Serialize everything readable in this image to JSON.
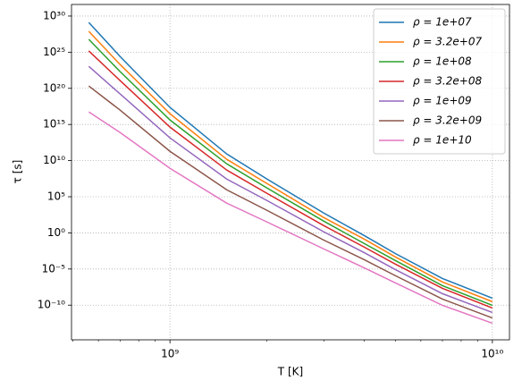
{
  "chart_data": {
    "type": "line",
    "xlabel": "T [K]",
    "ylabel": "τ [s]",
    "xscale": "log",
    "yscale": "log",
    "grid": true,
    "legend_loc": "upper-right",
    "xlim": [
      495000000.0,
      11300000000.0
    ],
    "ylim": [
      1.6e-15,
      4e+31
    ],
    "xticks": [
      {
        "value": 1000000000.0,
        "label": "10⁹"
      },
      {
        "value": 10000000000.0,
        "label": "10¹⁰"
      }
    ],
    "xminorticks": [
      500000000.0,
      600000000.0,
      700000000.0,
      800000000.0,
      900000000.0,
      2000000000.0,
      3000000000.0,
      4000000000.0,
      5000000000.0,
      6000000000.0,
      7000000000.0,
      8000000000.0,
      9000000000.0
    ],
    "yticks": [
      {
        "value": 1e-10,
        "label": "10⁻¹⁰"
      },
      {
        "value": 1e-05,
        "label": "10⁻⁵"
      },
      {
        "value": 1,
        "label": "10⁰"
      },
      {
        "value": 100000.0,
        "label": "10⁵"
      },
      {
        "value": 10000000000.0,
        "label": "10¹⁰"
      },
      {
        "value": 1000000000000000.0,
        "label": "10¹⁵"
      },
      {
        "value": 1e+20,
        "label": "10²⁰"
      },
      {
        "value": 1e+25,
        "label": "10²⁵"
      },
      {
        "value": 1e+30,
        "label": "10³⁰"
      }
    ],
    "x": [
      560000000.0,
      700000000.0,
      1000000000.0,
      1500000000.0,
      2000000000.0,
      3000000000.0,
      4000000000.0,
      5000000000.0,
      7000000000.0,
      10000000000.0
    ],
    "series": [
      {
        "name": "ρ = 1e+07",
        "color": "#1f77b4",
        "values": [
          1.3e+29,
          2.6e+24,
          2.3e+17,
          83000000000.0,
          28000000.0,
          550,
          0.44,
          0.0014,
          4.9e-07,
          9.3e-10
        ]
      },
      {
        "name": "ρ = 3.2e+07",
        "color": "#ff7f0e",
        "values": [
          7.8e+27,
          2e+23,
          3.1e+16,
          15000000000.0,
          6700000.0,
          130,
          0.14,
          0.00047,
          1.6e-07,
          3e-10
        ]
      },
      {
        "name": "ρ = 1e+08",
        "color": "#2ca02c",
        "values": [
          6e+26,
          2.1e+22,
          4200000000000000.0,
          3600000000.0,
          1600000.0,
          42,
          0.034,
          0.00015,
          5e-08,
          9.5e-11
        ]
      },
      {
        "name": "ρ = 3.2e+08",
        "color": "#d62728",
        "values": [
          1.5e+25,
          1.2e+21,
          430000000000000.0,
          490000000.0,
          290000.0,
          10,
          0.011,
          4.8e-05,
          2.1e-08,
          4e-11
        ]
      },
      {
        "name": "ρ = 1e+09",
        "color": "#9467bd",
        "values": [
          1.1e+23,
          1.7e+19,
          14000000000000.0,
          28000000.0,
          30000.0,
          1.4,
          0.0019,
          8.5e-06,
          3.9e-09,
          9.6e-12
        ]
      },
      {
        "name": "ρ = 3.2e+09",
        "color": "#8c564b",
        "values": [
          2.1e+20,
          9.8e+16,
          190000000000.0,
          910000.0,
          1300,
          0.1,
          0.0002,
          1.2e-06,
          6.9e-10,
          1.7e-12
        ]
      },
      {
        "name": "ρ = 1e+10",
        "color": "#e377c2",
        "values": [
          5.5e+16,
          78000000000000.0,
          860000000.0,
          13000.0,
          32,
          0.006,
          1.5e-05,
          1.2e-07,
          9.5e-11,
          3.2e-13
        ]
      }
    ]
  }
}
